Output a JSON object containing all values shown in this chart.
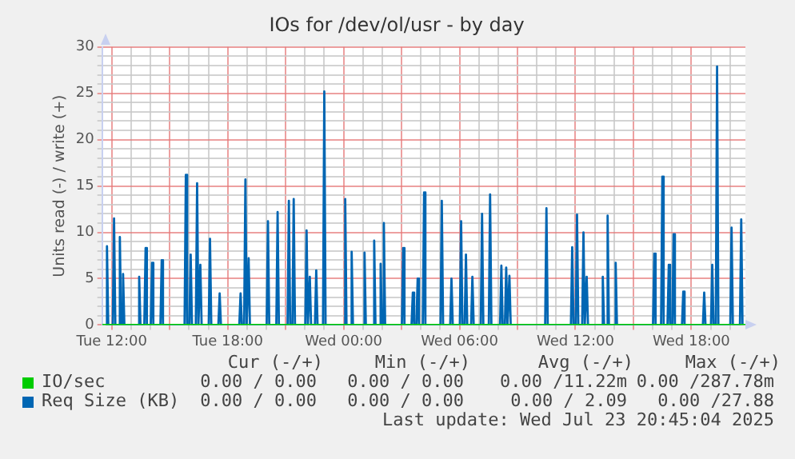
{
  "chart_data": {
    "type": "line",
    "title": "IOs for /dev/ol/usr - by day",
    "ylabel": "Units read (-) / write (+)",
    "xlim": [
      "2025-07-22T11:30",
      "2025-07-23T20:48"
    ],
    "xticks": [
      {
        "value": "2025-07-22T12:00",
        "label": "Tue 12:00"
      },
      {
        "value": "2025-07-22T13:00",
        "label": null
      },
      {
        "value": "2025-07-22T14:00",
        "label": null
      },
      {
        "value": "2025-07-22T15:00",
        "label": null
      },
      {
        "value": "2025-07-22T16:00",
        "label": null
      },
      {
        "value": "2025-07-22T17:00",
        "label": null
      },
      {
        "value": "2025-07-22T18:00",
        "label": "Tue 18:00"
      },
      {
        "value": "2025-07-22T19:00",
        "label": null
      },
      {
        "value": "2025-07-22T20:00",
        "label": null
      },
      {
        "value": "2025-07-22T21:00",
        "label": null
      },
      {
        "value": "2025-07-22T22:00",
        "label": null
      },
      {
        "value": "2025-07-22T23:00",
        "label": null
      },
      {
        "value": "2025-07-23T00:00",
        "label": "Wed 00:00"
      },
      {
        "value": "2025-07-23T01:00",
        "label": null
      },
      {
        "value": "2025-07-23T02:00",
        "label": null
      },
      {
        "value": "2025-07-23T03:00",
        "label": null
      },
      {
        "value": "2025-07-23T04:00",
        "label": null
      },
      {
        "value": "2025-07-23T05:00",
        "label": null
      },
      {
        "value": "2025-07-23T06:00",
        "label": "Wed 06:00"
      },
      {
        "value": "2025-07-23T07:00",
        "label": null
      },
      {
        "value": "2025-07-23T08:00",
        "label": null
      },
      {
        "value": "2025-07-23T09:00",
        "label": null
      },
      {
        "value": "2025-07-23T10:00",
        "label": null
      },
      {
        "value": "2025-07-23T11:00",
        "label": null
      },
      {
        "value": "2025-07-23T12:00",
        "label": "Wed 12:00"
      },
      {
        "value": "2025-07-23T13:00",
        "label": null
      },
      {
        "value": "2025-07-23T14:00",
        "label": null
      },
      {
        "value": "2025-07-23T15:00",
        "label": null
      },
      {
        "value": "2025-07-23T16:00",
        "label": null
      },
      {
        "value": "2025-07-23T17:00",
        "label": null
      },
      {
        "value": "2025-07-23T18:00",
        "label": "Wed 18:00"
      },
      {
        "value": "2025-07-23T19:00",
        "label": null
      },
      {
        "value": "2025-07-23T20:00",
        "label": null
      }
    ],
    "ylim": [
      0,
      30
    ],
    "yticks": [
      0,
      {
        "value": 1,
        "label": null
      },
      {
        "value": 2,
        "label": null
      },
      {
        "value": 3,
        "label": null
      },
      {
        "value": 4,
        "label": null
      },
      5,
      {
        "value": 6,
        "label": null
      },
      {
        "value": 7,
        "label": null
      },
      {
        "value": 8,
        "label": null
      },
      {
        "value": 9,
        "label": null
      },
      10,
      {
        "value": 11,
        "label": null
      },
      {
        "value": 12,
        "label": null
      },
      {
        "value": 13,
        "label": null
      },
      {
        "value": 14,
        "label": null
      },
      15,
      {
        "value": 16,
        "label": null
      },
      {
        "value": 17,
        "label": null
      },
      {
        "value": 18,
        "label": null
      },
      {
        "value": 19,
        "label": null
      },
      20,
      {
        "value": 21,
        "label": null
      },
      {
        "value": 22,
        "label": null
      },
      {
        "value": 23,
        "label": null
      },
      {
        "value": 24,
        "label": null
      },
      25,
      {
        "value": 26,
        "label": null
      },
      {
        "value": 27,
        "label": null
      },
      {
        "value": 28,
        "label": null
      },
      {
        "value": 29,
        "label": null
      },
      30
    ],
    "grid": true,
    "legend": "bottom",
    "marker": "none",
    "line_style": "solid",
    "series": [
      {
        "name": "IO/sec",
        "color": "#00cc00",
        "x": [
          "2025-07-22T11:30",
          "2025-07-23T20:48"
        ],
        "values": [
          0,
          0
        ]
      },
      {
        "name": "Req Size (KB)",
        "color": "#0066b3",
        "x": [
          "2025-07-22T11:41",
          "2025-07-22T11:45",
          "2025-07-22T11:49",
          "2025-07-22T12:03",
          "2025-07-22T12:07",
          "2025-07-22T12:11",
          "2025-07-22T12:21",
          "2025-07-22T12:25",
          "2025-07-22T12:29",
          "2025-07-22T12:31",
          "2025-07-22T12:35",
          "2025-07-22T12:39",
          "2025-07-22T13:21",
          "2025-07-22T13:25",
          "2025-07-22T13:29",
          "2025-07-22T13:41",
          "2025-07-22T13:45",
          "2025-07-22T13:49",
          "2025-07-22T14:01",
          "2025-07-22T14:05",
          "2025-07-22T14:09",
          "2025-07-22T14:31",
          "2025-07-22T14:35",
          "2025-07-22T14:39",
          "2025-07-22T15:46",
          "2025-07-22T15:50",
          "2025-07-22T15:54",
          "2025-07-22T16:01",
          "2025-07-22T16:05",
          "2025-07-22T16:09",
          "2025-07-22T16:21",
          "2025-07-22T16:25",
          "2025-07-22T16:29",
          "2025-07-22T16:31",
          "2025-07-22T16:35",
          "2025-07-22T16:39",
          "2025-07-22T17:01",
          "2025-07-22T17:05",
          "2025-07-22T17:09",
          "2025-07-22T17:31",
          "2025-07-22T17:35",
          "2025-07-22T17:39",
          "2025-07-22T18:36",
          "2025-07-22T18:40",
          "2025-07-22T18:44",
          "2025-07-22T18:51",
          "2025-07-22T18:55",
          "2025-07-22T18:59",
          "2025-07-22T19:01",
          "2025-07-22T19:05",
          "2025-07-22T19:09",
          "2025-07-22T20:01",
          "2025-07-22T20:05",
          "2025-07-22T20:09",
          "2025-07-22T20:31",
          "2025-07-22T20:35",
          "2025-07-22T20:39",
          "2025-07-22T21:06",
          "2025-07-22T21:10",
          "2025-07-22T21:14",
          "2025-07-22T21:21",
          "2025-07-22T21:25",
          "2025-07-22T21:29",
          "2025-07-22T22:01",
          "2025-07-22T22:05",
          "2025-07-22T22:09",
          "2025-07-22T22:11",
          "2025-07-22T22:15",
          "2025-07-22T22:19",
          "2025-07-22T22:31",
          "2025-07-22T22:35",
          "2025-07-22T22:39",
          "2025-07-22T22:56",
          "2025-07-22T23:00",
          "2025-07-22T23:04",
          "2025-07-23T00:01",
          "2025-07-23T00:05",
          "2025-07-23T00:09",
          "2025-07-23T00:21",
          "2025-07-23T00:25",
          "2025-07-23T00:29",
          "2025-07-23T01:01",
          "2025-07-23T01:05",
          "2025-07-23T01:09",
          "2025-07-23T01:31",
          "2025-07-23T01:35",
          "2025-07-23T01:39",
          "2025-07-23T01:51",
          "2025-07-23T01:55",
          "2025-07-23T01:59",
          "2025-07-23T02:01",
          "2025-07-23T02:05",
          "2025-07-23T02:09",
          "2025-07-23T03:01",
          "2025-07-23T03:05",
          "2025-07-23T03:09",
          "2025-07-23T03:31",
          "2025-07-23T03:35",
          "2025-07-23T03:39",
          "2025-07-23T03:46",
          "2025-07-23T03:50",
          "2025-07-23T03:54",
          "2025-07-23T04:06",
          "2025-07-23T04:10",
          "2025-07-23T04:14",
          "2025-07-23T05:01",
          "2025-07-23T05:05",
          "2025-07-23T05:09",
          "2025-07-23T05:31",
          "2025-07-23T05:35",
          "2025-07-23T05:39",
          "2025-07-23T06:01",
          "2025-07-23T06:05",
          "2025-07-23T06:09",
          "2025-07-23T06:16",
          "2025-07-23T06:20",
          "2025-07-23T06:24",
          "2025-07-23T06:36",
          "2025-07-23T06:40",
          "2025-07-23T06:44",
          "2025-07-23T07:06",
          "2025-07-23T07:10",
          "2025-07-23T07:14",
          "2025-07-23T07:31",
          "2025-07-23T07:35",
          "2025-07-23T07:39",
          "2025-07-23T08:06",
          "2025-07-23T08:10",
          "2025-07-23T08:14",
          "2025-07-23T08:21",
          "2025-07-23T08:25",
          "2025-07-23T08:29",
          "2025-07-23T08:31",
          "2025-07-23T08:35",
          "2025-07-23T08:39",
          "2025-07-23T10:26",
          "2025-07-23T10:30",
          "2025-07-23T10:34",
          "2025-07-23T11:46",
          "2025-07-23T11:50",
          "2025-07-23T11:54",
          "2025-07-23T12:01",
          "2025-07-23T12:05",
          "2025-07-23T12:09",
          "2025-07-23T12:21",
          "2025-07-23T12:25",
          "2025-07-23T12:29",
          "2025-07-23T12:31",
          "2025-07-23T12:35",
          "2025-07-23T12:39",
          "2025-07-23T13:21",
          "2025-07-23T13:25",
          "2025-07-23T13:29",
          "2025-07-23T13:36",
          "2025-07-23T13:40",
          "2025-07-23T13:44",
          "2025-07-23T14:01",
          "2025-07-23T14:05",
          "2025-07-23T14:09",
          "2025-07-23T16:01",
          "2025-07-23T16:05",
          "2025-07-23T16:09",
          "2025-07-23T16:26",
          "2025-07-23T16:30",
          "2025-07-23T16:34",
          "2025-07-23T16:46",
          "2025-07-23T16:50",
          "2025-07-23T16:54",
          "2025-07-23T17:01",
          "2025-07-23T17:05",
          "2025-07-23T17:09",
          "2025-07-23T17:31",
          "2025-07-23T17:35",
          "2025-07-23T17:39",
          "2025-07-23T18:36",
          "2025-07-23T18:40",
          "2025-07-23T18:44",
          "2025-07-23T19:01",
          "2025-07-23T19:05",
          "2025-07-23T19:09",
          "2025-07-23T19:16",
          "2025-07-23T19:20",
          "2025-07-23T19:24",
          "2025-07-23T20:01",
          "2025-07-23T20:05",
          "2025-07-23T20:09",
          "2025-07-23T20:31",
          "2025-07-23T20:35",
          "2025-07-23T20:39"
        ],
        "values": [
          0,
          8.5,
          0,
          0,
          11.5,
          0,
          0,
          9.5,
          0,
          0,
          5.5,
          0,
          0,
          5.2,
          0,
          0,
          8.3,
          0,
          0,
          6.7,
          0,
          0,
          7,
          0,
          0,
          16.2,
          0,
          0,
          7.6,
          0,
          0,
          15.3,
          0,
          0,
          6.5,
          0,
          0,
          9.3,
          0,
          0,
          3.4,
          0,
          0,
          3.4,
          0,
          0,
          15.7,
          0,
          0,
          7.2,
          0,
          0,
          11.2,
          0,
          0,
          12.2,
          0,
          0,
          13.4,
          0,
          0,
          13.6,
          0,
          0,
          10.2,
          0,
          0,
          5.2,
          0,
          0,
          5.9,
          0,
          0,
          25.2,
          0,
          0,
          13.6,
          0,
          0,
          7.9,
          0,
          0,
          7.8,
          0,
          0,
          9.1,
          0,
          0,
          6.6,
          0,
          0,
          11,
          0,
          0,
          8.3,
          0,
          0,
          3.5,
          0,
          0,
          5,
          0,
          0,
          14.3,
          0,
          0,
          13.4,
          0,
          0,
          5,
          0,
          0,
          11.2,
          0,
          0,
          7.6,
          0,
          0,
          5.2,
          0,
          0,
          12,
          0,
          0,
          14.1,
          0,
          0,
          6.4,
          0,
          0,
          6.2,
          0,
          0,
          5.3,
          0,
          0,
          12.6,
          0,
          0,
          8.4,
          0,
          0,
          11.9,
          0,
          0,
          10,
          0,
          0,
          5.2,
          0,
          0,
          5.2,
          0,
          0,
          11.8,
          0,
          0,
          6.7,
          0,
          0,
          7.7,
          0,
          0,
          16,
          0,
          0,
          6.5,
          0,
          0,
          9.8,
          0,
          0,
          3.6,
          0,
          0,
          3.5,
          0,
          0,
          6.5,
          0,
          0,
          27.9,
          0,
          0,
          10.5,
          0,
          0,
          11.4,
          0
        ]
      }
    ],
    "annotations": [
      "Cur (-/+)",
      "Min (-/+)",
      "Avg (-/+)",
      "Max (-/+)",
      "0.00 / 0.00",
      "0.00 / 0.00",
      "0.00 /11.22m",
      "0.00 /287.78m",
      "0.00 / 0.00",
      "0.00 / 0.00",
      "0.00 / 2.09",
      "0.00 /27.88",
      "Last update: Wed Jul 23 20:45:04 2025"
    ]
  }
}
